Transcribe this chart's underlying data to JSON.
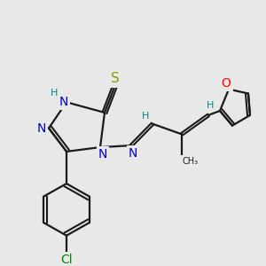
{
  "bg_color": "#e8e8e8",
  "atom_colors": {
    "N": "#0000cc",
    "S": "#999900",
    "O": "#ff0000",
    "C": "#1a1a1a",
    "H": "#008888",
    "Cl": "#008800"
  },
  "bond_color": "#1a1a1a",
  "font_size_atom": 10,
  "font_size_small": 8
}
